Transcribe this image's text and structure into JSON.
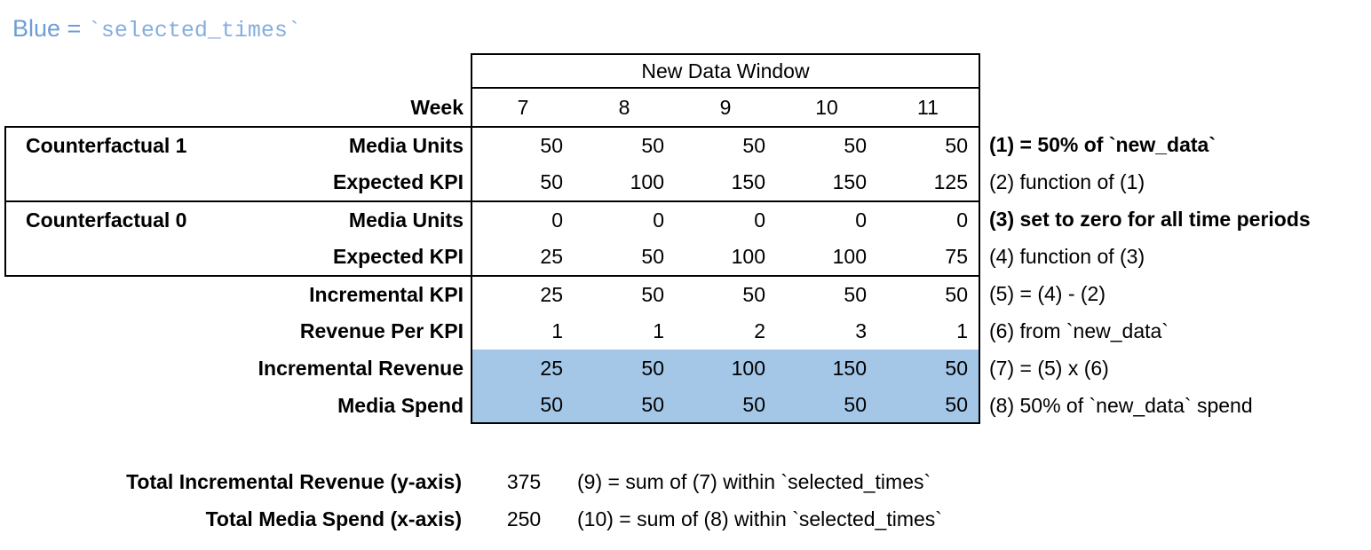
{
  "title": {
    "prefix": "Blue = ",
    "code": "`selected_times`"
  },
  "table": {
    "window_header": "New Data Window",
    "week_label": "Week",
    "weeks": [
      "7",
      "8",
      "9",
      "10",
      "11"
    ],
    "groups": [
      {
        "label": "Counterfactual 1"
      },
      {
        "label": "Counterfactual 0"
      }
    ],
    "rows": [
      {
        "label": "Media Units",
        "values": [
          "50",
          "50",
          "50",
          "50",
          "50"
        ],
        "note": "(1) = 50% of `new_data`"
      },
      {
        "label": "Expected KPI",
        "values": [
          "50",
          "100",
          "150",
          "150",
          "125"
        ],
        "note": "(2) function of (1)"
      },
      {
        "label": "Media Units",
        "values": [
          "0",
          "0",
          "0",
          "0",
          "0"
        ],
        "note": "(3) set to zero for all time periods"
      },
      {
        "label": "Expected KPI",
        "values": [
          "25",
          "50",
          "100",
          "100",
          "75"
        ],
        "note": "(4) function of (3)"
      },
      {
        "label": "Incremental KPI",
        "values": [
          "25",
          "50",
          "50",
          "50",
          "50"
        ],
        "note": "(5) = (4) - (2)"
      },
      {
        "label": "Revenue Per KPI",
        "values": [
          "1",
          "1",
          "2",
          "3",
          "1"
        ],
        "note": "(6) from `new_data`"
      },
      {
        "label": "Incremental Revenue",
        "values": [
          "25",
          "50",
          "100",
          "150",
          "50"
        ],
        "note": "(7) = (5) x (6)"
      },
      {
        "label": "Media Spend",
        "values": [
          "50",
          "50",
          "50",
          "50",
          "50"
        ],
        "note": "(8) 50% of `new_data` spend"
      }
    ]
  },
  "totals": [
    {
      "label": "Total Incremental Revenue (y-axis)",
      "value": "375",
      "note": "(9) = sum of (7) within `selected_times`"
    },
    {
      "label": "Total Media Spend (x-axis)",
      "value": "250",
      "note": "(10) = sum of (8) within `selected_times`"
    }
  ],
  "colors": {
    "highlight_blue": "#A4C7E8",
    "title_blue": "#6D9ED6",
    "title_code_blue": "#85AEDE",
    "border": "#000000"
  }
}
